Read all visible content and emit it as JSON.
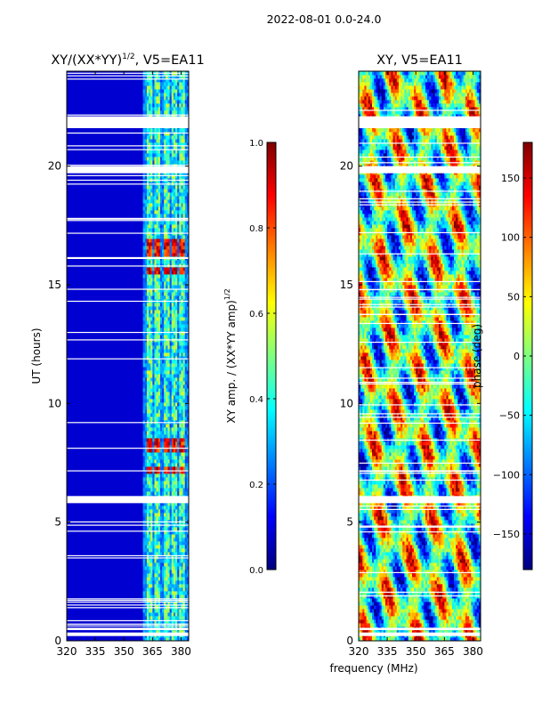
{
  "suptitle": "2022-08-01 0.0-24.0",
  "shared_xlabel": "frequency (MHz)",
  "colors": {
    "jet": [
      "#00007f",
      "#0000ff",
      "#007fff",
      "#00ffff",
      "#7fff7f",
      "#ffff00",
      "#ff7f00",
      "#ff0000",
      "#7f0000"
    ],
    "axis": "#000000",
    "background": "#ffffff"
  },
  "chart_data": [
    {
      "type": "heatmap",
      "id": "amp",
      "title_main": "XY/(XX*YY)",
      "title_sup": "1/2",
      "title_tail": ", V5=EA11",
      "xlabel": "",
      "ylabel": "UT (hours)",
      "xlim": [
        320,
        384
      ],
      "ylim": [
        0,
        24
      ],
      "xticks": [
        320,
        335,
        350,
        365,
        380
      ],
      "xtick_labels": [
        "320",
        "335",
        "350",
        "365",
        "380"
      ],
      "yticks": [
        0,
        5,
        10,
        15,
        20
      ],
      "ytick_labels": [
        "0",
        "5",
        "10",
        "15",
        "20"
      ],
      "colorbar": {
        "label_main": "XY amp. / (XX*YY amp)",
        "label_sup": "1/2",
        "range": [
          0.0,
          1.0
        ],
        "ticks": [
          0.0,
          0.2,
          0.4,
          0.6,
          0.8,
          1.0
        ],
        "tick_labels": [
          "0.0",
          "0.2",
          "0.4",
          "0.6",
          "0.8",
          "1.0"
        ]
      },
      "flagged_ut_ranges": [
        [
          21.6,
          22.1
        ],
        [
          19.7,
          20.0
        ],
        [
          5.8,
          6.1
        ],
        [
          0.2,
          0.35
        ],
        [
          0.45,
          0.55
        ]
      ],
      "rfi_channel_bands_mhz": [
        [
          362.5,
          365
        ],
        [
          366.5,
          369
        ],
        [
          371,
          373.5
        ],
        [
          375.5,
          378
        ],
        [
          379.5,
          381.5
        ]
      ],
      "high_amp_ut_ranges": [
        [
          16.2,
          16.9
        ],
        [
          15.4,
          15.8
        ],
        [
          8.0,
          8.5
        ],
        [
          7.1,
          7.4
        ]
      ]
    },
    {
      "type": "heatmap",
      "id": "phase",
      "title_main": "XY, V5=EA11",
      "xlabel": "",
      "ylabel": "",
      "xlim": [
        320,
        384
      ],
      "ylim": [
        0,
        24
      ],
      "xticks": [
        320,
        335,
        350,
        365,
        380
      ],
      "xtick_labels": [
        "320",
        "335",
        "350",
        "365",
        "380"
      ],
      "yticks": [
        0,
        5,
        10,
        15,
        20
      ],
      "ytick_labels": [
        "0",
        "5",
        "10",
        "15",
        "20"
      ],
      "colorbar": {
        "label_main": "phase (deg)",
        "range": [
          -180,
          180
        ],
        "ticks": [
          -150,
          -100,
          -50,
          0,
          50,
          100,
          150
        ],
        "tick_labels": [
          "−150",
          "−100",
          "−50",
          "0",
          "50",
          "100",
          "150"
        ]
      },
      "flagged_ut_ranges": [
        [
          21.6,
          22.1
        ],
        [
          19.7,
          20.0
        ],
        [
          5.8,
          6.1
        ],
        [
          0.2,
          0.35
        ],
        [
          0.45,
          0.55
        ]
      ]
    }
  ]
}
